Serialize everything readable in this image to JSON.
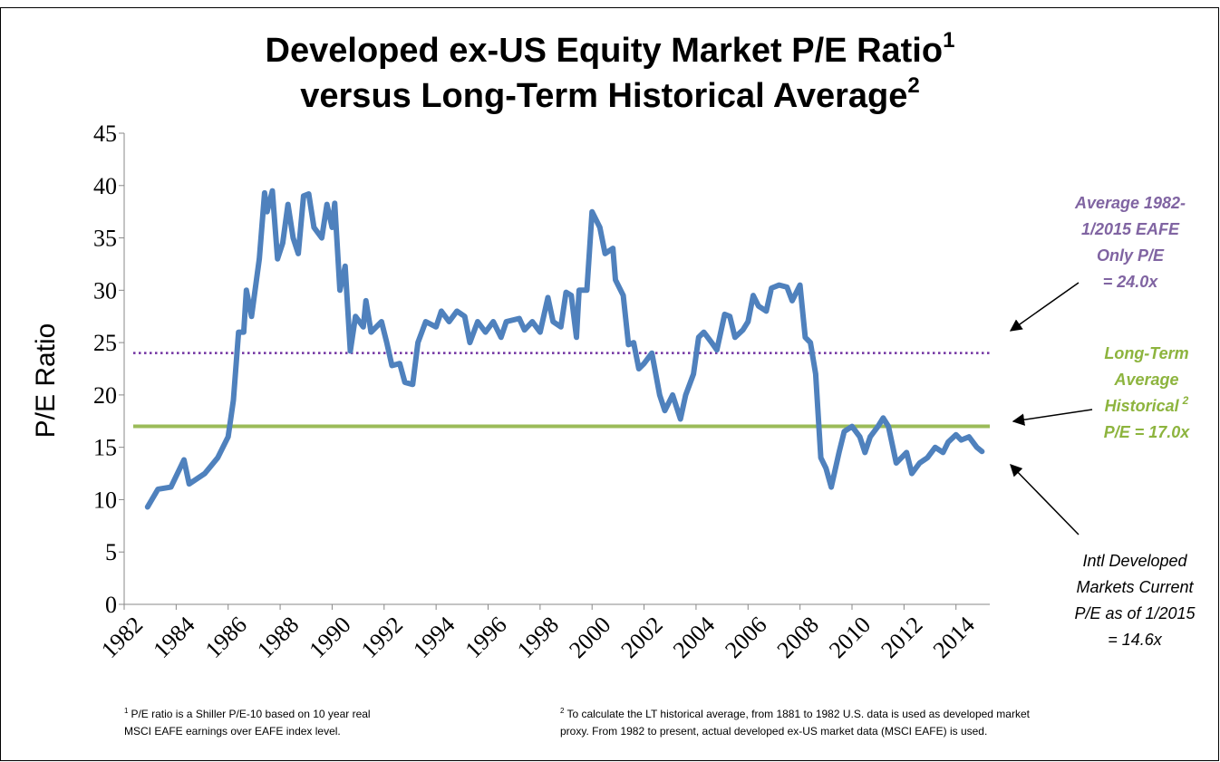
{
  "chart_data": {
    "type": "line",
    "title_lines": [
      {
        "text": "Developed ex-US Equity Market P/E Ratio",
        "sup": "1"
      },
      {
        "text": "versus Long-Term Historical Average",
        "sup": "2"
      }
    ],
    "y_label": "P/E Ratio",
    "xlim": [
      1982,
      2015.3
    ],
    "xticks": [
      1982,
      1984,
      1986,
      1988,
      1990,
      1992,
      1994,
      1996,
      1998,
      2000,
      2002,
      2004,
      2006,
      2008,
      2010,
      2012,
      2014
    ],
    "ylim": [
      0,
      45
    ],
    "yticks": [
      0,
      5,
      10,
      15,
      20,
      25,
      30,
      35,
      40,
      45
    ],
    "color": "#4f81bd",
    "x": [
      1982.9,
      1983.3,
      1983.8,
      1984.3,
      1984.5,
      1985.1,
      1985.6,
      1986.0,
      1986.2,
      1986.4,
      1986.6,
      1986.7,
      1986.9,
      1987.2,
      1987.4,
      1987.5,
      1987.7,
      1987.9,
      1988.1,
      1988.3,
      1988.5,
      1988.7,
      1988.9,
      1989.1,
      1989.3,
      1989.6,
      1989.8,
      1990.0,
      1990.1,
      1990.3,
      1990.5,
      1990.7,
      1990.9,
      1991.2,
      1991.3,
      1991.5,
      1991.9,
      1992.1,
      1992.3,
      1992.6,
      1992.8,
      1993.1,
      1993.3,
      1993.6,
      1994.0,
      1994.2,
      1994.5,
      1994.8,
      1995.1,
      1995.3,
      1995.6,
      1995.9,
      1996.2,
      1996.5,
      1996.7,
      1997.2,
      1997.4,
      1997.7,
      1998.0,
      1998.3,
      1998.5,
      1998.8,
      1999.0,
      1999.2,
      1999.4,
      1999.5,
      1999.8,
      2000.0,
      2000.3,
      2000.5,
      2000.8,
      2000.9,
      2001.2,
      2001.4,
      2001.6,
      2001.8,
      2002.0,
      2002.3,
      2002.6,
      2002.8,
      2003.1,
      2003.4,
      2003.6,
      2003.9,
      2004.1,
      2004.3,
      2004.6,
      2004.8,
      2005.1,
      2005.3,
      2005.5,
      2005.8,
      2006.0,
      2006.2,
      2006.4,
      2006.7,
      2006.9,
      2007.2,
      2007.5,
      2007.7,
      2008.0,
      2008.2,
      2008.4,
      2008.6,
      2008.8,
      2009.0,
      2009.2,
      2009.5,
      2009.7,
      2010.0,
      2010.3,
      2010.5,
      2010.7,
      2011.0,
      2011.2,
      2011.4,
      2011.7,
      2011.9,
      2012.1,
      2012.3,
      2012.6,
      2012.9,
      2013.2,
      2013.5,
      2013.7,
      2014.0,
      2014.2,
      2014.5,
      2014.8,
      2015.0
    ],
    "values": [
      9.3,
      11,
      11.2,
      13.8,
      11.5,
      12.5,
      14,
      16,
      19.5,
      26,
      26,
      30,
      27.5,
      33,
      39.3,
      37.5,
      39.5,
      33,
      34.5,
      38.2,
      35,
      33.5,
      39,
      39.2,
      36,
      35,
      38.2,
      36,
      38.3,
      30,
      32.3,
      24.2,
      27.5,
      26.5,
      29,
      26,
      27,
      25,
      22.8,
      23,
      21.2,
      21,
      25,
      27,
      26.5,
      28,
      27,
      28,
      27.5,
      25,
      27,
      26,
      27,
      25.5,
      27,
      27.3,
      26.2,
      27,
      26,
      29.3,
      27,
      26.5,
      29.8,
      29.5,
      25.5,
      30,
      30,
      37.5,
      36,
      33.5,
      34,
      31,
      29.5,
      24.8,
      25,
      22.5,
      23,
      24,
      20,
      18.5,
      20,
      17.7,
      20,
      22,
      25.5,
      26,
      25,
      24.3,
      27.7,
      27.5,
      25.5,
      26.2,
      27,
      29.5,
      28.5,
      28,
      30.2,
      30.5,
      30.3,
      29,
      30.5,
      25.5,
      25,
      22,
      14,
      13,
      11.2,
      14.5,
      16.5,
      17,
      16,
      14.5,
      16,
      17,
      17.8,
      17,
      13.5,
      14,
      14.5,
      12.5,
      13.5,
      14,
      15,
      14.5,
      15.5,
      16.2,
      15.7,
      16,
      15,
      14.6
    ],
    "reference_lines": [
      {
        "value": 24.0,
        "color": "#7030a0",
        "style": "dotted",
        "label_color": "#8064a2",
        "label_lines": [
          "Average 1982-",
          "1/2015 EAFE",
          "Only P/E",
          "= 24.0x"
        ]
      },
      {
        "value": 17.0,
        "color": "#9bbb59",
        "style": "solid",
        "label_color": "#8db43e",
        "label_lines": [
          "Long-Term",
          "Average",
          "Historical",
          "P/E = 17.0x"
        ],
        "label_sup": "2"
      }
    ],
    "annotation_lines": [
      "Intl Developed",
      "Markets Current",
      "P/E as of 1/2015",
      "= 14.6x"
    ],
    "footnotes": [
      {
        "mark": "1",
        "lines": [
          "P/E ratio is a Shiller P/E-10 based on 10 year real",
          "MSCI EAFE earnings over EAFE index level."
        ]
      },
      {
        "mark": "2",
        "lines": [
          "To calculate the LT historical average, from 1881 to 1982 U.S. data is used as developed market",
          "proxy.  From 1982 to present, actual developed ex-US market data (MSCI EAFE) is used."
        ]
      }
    ]
  }
}
